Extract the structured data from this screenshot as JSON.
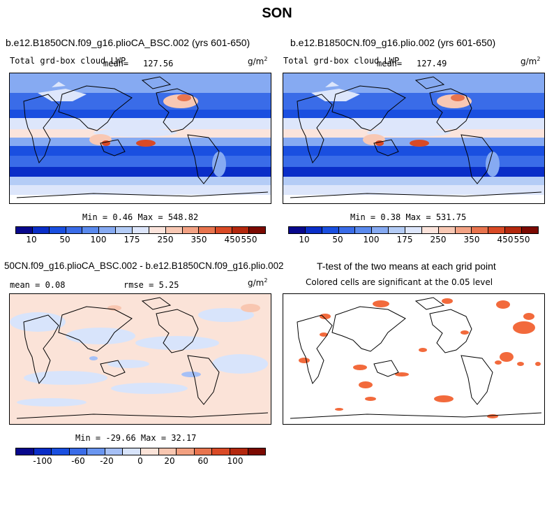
{
  "page_title": "SON",
  "colors": {
    "abs_scale": [
      "#08088c",
      "#0a2ec8",
      "#1a4fe0",
      "#3a6ce8",
      "#5a8aee",
      "#86aaf2",
      "#b4ccf6",
      "#dde6fb",
      "#fbe4dc",
      "#f8c8b4",
      "#f2a284",
      "#e8744e",
      "#d94a26",
      "#b4280e",
      "#7c0a02"
    ],
    "diff_scale": [
      "#08088c",
      "#0a2ec8",
      "#1a4fe0",
      "#3a6ce8",
      "#6a96f0",
      "#a6c0f6",
      "#d8e4fb",
      "#fbe3d8",
      "#f8c6b0",
      "#f2a080",
      "#e8744e",
      "#d94a26",
      "#b4280e",
      "#7c0a02"
    ],
    "significant": "#f26a3c",
    "land_line": "#000000"
  },
  "panels": {
    "top_left": {
      "case": "b.e12.B1850CN.f09_g16.plioCA_BSC.002 (yrs 601-650)",
      "variable": "Total grd-box cloud LWP",
      "mean_label": "mean=",
      "mean_value": "127.56",
      "units": "g/m",
      "units_sup": "2",
      "minmax": "Min =    0.46 Max = 548.82"
    },
    "top_right": {
      "case": "b.e12.B1850CN.f09_g16.plio.002 (yrs 601-650)",
      "variable": "Total grd-box cloud LWP",
      "mean_label": "mean=",
      "mean_value": "127.49",
      "units": "g/m",
      "units_sup": "2",
      "minmax": "Min =    0.38 Max = 531.75"
    },
    "bottom_left": {
      "case": "50CN.f09_g16.plioCA_BSC.002 - b.e12.B1850CN.f09_g16.plio.002",
      "mean_text": "mean =     0.08",
      "rmse_text": "rmse =     5.25",
      "units": "g/m",
      "units_sup": "2",
      "minmax": "Min = -29.66 Max =  32.17"
    },
    "bottom_right": {
      "case": "T-test of the two means at each grid point",
      "subtitle": "Colored cells are significant at the 0.05 level"
    }
  },
  "colorbars": {
    "abs_labels": [
      "10",
      "50",
      "100",
      "175",
      "250",
      "350",
      "450",
      "550"
    ],
    "diff_labels": [
      "-100",
      "-60",
      "-20",
      "0",
      "20",
      "60",
      "100"
    ]
  }
}
